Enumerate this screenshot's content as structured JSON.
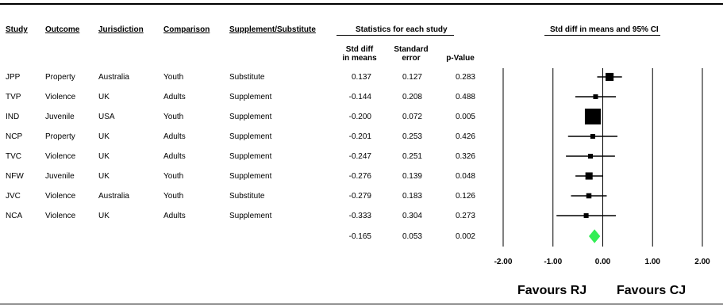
{
  "headers": {
    "study": "Study",
    "outcome": "Outcome",
    "jurisdiction": "Jurisdiction",
    "comparison": "Comparison",
    "supplement": "Supplement/Substitute",
    "stats_group": "Statistics for each study",
    "plot_group": "Std diff in means and 95% CI",
    "std_diff": "Std diff\nin means",
    "std_error": "Standard\nerror",
    "p_value": "p-Value"
  },
  "rows": [
    {
      "study": "JPP",
      "outcome": "Property",
      "jurisdiction": "Australia",
      "comparison": "Youth",
      "supplement": "Substitute",
      "std_diff": "0.137",
      "std_error": "0.127",
      "p_value": "0.283"
    },
    {
      "study": "TVP",
      "outcome": "Violence",
      "jurisdiction": "UK",
      "comparison": "Adults",
      "supplement": "Supplement",
      "std_diff": "-0.144",
      "std_error": "0.208",
      "p_value": "0.488"
    },
    {
      "study": "IND",
      "outcome": "Juvenile",
      "jurisdiction": "USA",
      "comparison": "Youth",
      "supplement": "Supplement",
      "std_diff": "-0.200",
      "std_error": "0.072",
      "p_value": "0.005"
    },
    {
      "study": "NCP",
      "outcome": "Property",
      "jurisdiction": "UK",
      "comparison": "Adults",
      "supplement": "Supplement",
      "std_diff": "-0.201",
      "std_error": "0.253",
      "p_value": "0.426"
    },
    {
      "study": "TVC",
      "outcome": "Violence",
      "jurisdiction": "UK",
      "comparison": "Adults",
      "supplement": "Supplement",
      "std_diff": "-0.247",
      "std_error": "0.251",
      "p_value": "0.326"
    },
    {
      "study": "NFW",
      "outcome": "Juvenile",
      "jurisdiction": "UK",
      "comparison": "Youth",
      "supplement": "Supplement",
      "std_diff": "-0.276",
      "std_error": "0.139",
      "p_value": "0.048"
    },
    {
      "study": "JVC",
      "outcome": "Violence",
      "jurisdiction": "Australia",
      "comparison": "Youth",
      "supplement": "Substitute",
      "std_diff": "-0.279",
      "std_error": "0.183",
      "p_value": "0.126"
    },
    {
      "study": "NCA",
      "outcome": "Violence",
      "jurisdiction": "UK",
      "comparison": "Adults",
      "supplement": "Supplement",
      "std_diff": "-0.333",
      "std_error": "0.304",
      "p_value": "0.273"
    }
  ],
  "summary": {
    "std_diff": "-0.165",
    "std_error": "0.053",
    "p_value": "0.002"
  },
  "favours": {
    "left": "Favours RJ",
    "right": "Favours CJ"
  },
  "chart_data": {
    "type": "forest",
    "title": "Std diff in means and 95% CI",
    "xlim": [
      -2,
      2
    ],
    "x_ticks": [
      -2,
      -1,
      0,
      1,
      2
    ],
    "x_tick_labels": [
      "-2.00",
      "-1.00",
      "0.00",
      "1.00",
      "2.00"
    ],
    "grid": "vertical lines at ticks",
    "studies": [
      {
        "label": "JPP",
        "effect": 0.137,
        "se": 0.127
      },
      {
        "label": "TVP",
        "effect": -0.144,
        "se": 0.208
      },
      {
        "label": "IND",
        "effect": -0.2,
        "se": 0.072
      },
      {
        "label": "NCP",
        "effect": -0.201,
        "se": 0.253
      },
      {
        "label": "TVC",
        "effect": -0.247,
        "se": 0.251
      },
      {
        "label": "NFW",
        "effect": -0.276,
        "se": 0.139
      },
      {
        "label": "JVC",
        "effect": -0.279,
        "se": 0.183
      },
      {
        "label": "NCA",
        "effect": -0.333,
        "se": 0.304
      }
    ],
    "summary": {
      "effect": -0.165,
      "se": 0.053,
      "color": "#33ee55"
    },
    "marker_color": "#000000"
  }
}
